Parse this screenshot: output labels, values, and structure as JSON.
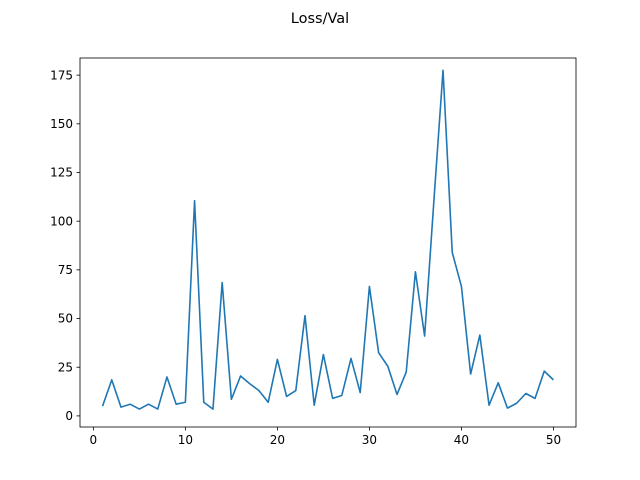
{
  "chart_data": {
    "type": "line",
    "title": "Loss/Val",
    "xlabel": "",
    "ylabel": "",
    "xlim": [
      -1.45,
      52.45
    ],
    "ylim": [
      -5.7,
      183.8
    ],
    "grid": false,
    "line_color": "#1f77b4",
    "x_ticks": [
      0,
      10,
      20,
      30,
      40,
      50
    ],
    "y_ticks": [
      0,
      25,
      50,
      75,
      100,
      125,
      150,
      175
    ],
    "series": [
      {
        "x": [
          1,
          2,
          3,
          4,
          5,
          6,
          7,
          8,
          9,
          10,
          11,
          12,
          13,
          14,
          15,
          16,
          17,
          18,
          19,
          20,
          21,
          22,
          23,
          24,
          25,
          26,
          27,
          28,
          29,
          30,
          31,
          32,
          33,
          34,
          35,
          36,
          37,
          38,
          39,
          40,
          41,
          42,
          43,
          44,
          45,
          46,
          47,
          48,
          49,
          50
        ],
        "values": [
          5.0,
          18.5,
          4.5,
          6.0,
          3.5,
          6.0,
          3.5,
          20.0,
          6.0,
          7.0,
          110.5,
          7.0,
          3.5,
          68.5,
          8.5,
          20.5,
          16.5,
          13.0,
          7.0,
          29.0,
          10.0,
          13.0,
          51.5,
          5.5,
          31.5,
          9.0,
          10.5,
          29.5,
          12.0,
          66.5,
          32.5,
          25.5,
          11.0,
          22.5,
          74.0,
          41.0,
          110.0,
          177.5,
          84.0,
          66.5,
          21.5,
          41.5,
          5.5,
          17.0,
          4.0,
          6.5,
          11.5,
          9.0,
          23.0,
          18.5
        ]
      }
    ]
  }
}
